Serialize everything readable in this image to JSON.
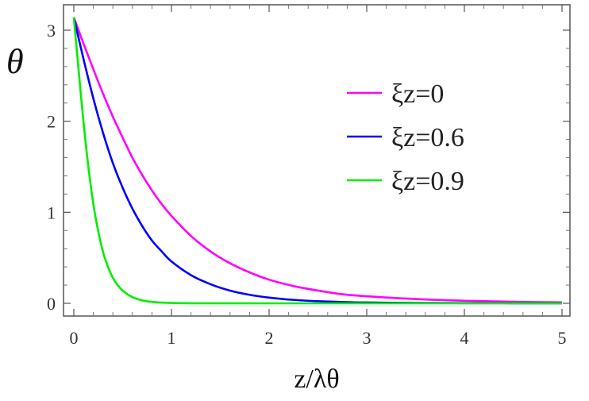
{
  "chart_data": {
    "type": "line",
    "ylabel": "θ",
    "xlabel": "z/λθ",
    "xlim": [
      0,
      5
    ],
    "ylim": [
      -0.15,
      3.2
    ],
    "xticks": [
      0,
      1,
      2,
      3,
      4,
      5
    ],
    "yticks": [
      0,
      1,
      2,
      3
    ],
    "legend_position": "top-right",
    "series": [
      {
        "name": "ξz=0",
        "color": "#ff00ff",
        "x": [
          0,
          0.1,
          0.2,
          0.3,
          0.4,
          0.5,
          0.6,
          0.7,
          0.8,
          0.9,
          1.0,
          1.2,
          1.4,
          1.6,
          1.8,
          2.0,
          2.25,
          2.5,
          2.75,
          3.0,
          3.5,
          4.0,
          4.5,
          5.0
        ],
        "y": [
          3.14,
          2.85,
          2.57,
          2.3,
          2.05,
          1.82,
          1.6,
          1.41,
          1.24,
          1.09,
          0.96,
          0.74,
          0.57,
          0.44,
          0.34,
          0.26,
          0.19,
          0.14,
          0.1,
          0.078,
          0.047,
          0.028,
          0.017,
          0.01
        ]
      },
      {
        "name": "ξz=0.6",
        "color": "#0000ff",
        "x": [
          0,
          0.1,
          0.2,
          0.3,
          0.4,
          0.5,
          0.6,
          0.7,
          0.8,
          0.9,
          1.0,
          1.2,
          1.4,
          1.6,
          1.8,
          2.0,
          2.25,
          2.5,
          2.75,
          3.0,
          3.5,
          4.0,
          4.5,
          5.0
        ],
        "y": [
          3.14,
          2.68,
          2.25,
          1.87,
          1.54,
          1.27,
          1.04,
          0.85,
          0.69,
          0.57,
          0.46,
          0.31,
          0.21,
          0.14,
          0.094,
          0.063,
          0.038,
          0.023,
          0.014,
          0.009,
          0.004,
          0.002,
          0.001,
          0.0005
        ]
      },
      {
        "name": "ξz=0.9",
        "color": "#00ee00",
        "x": [
          0,
          0.05,
          0.1,
          0.15,
          0.2,
          0.25,
          0.3,
          0.35,
          0.4,
          0.45,
          0.5,
          0.6,
          0.7,
          0.8,
          0.9,
          1.0,
          1.2,
          1.5,
          2.0,
          3.0,
          4.0,
          5.0
        ],
        "y": [
          3.14,
          2.55,
          1.98,
          1.49,
          1.09,
          0.79,
          0.56,
          0.4,
          0.28,
          0.2,
          0.14,
          0.068,
          0.033,
          0.016,
          0.008,
          0.004,
          0.001,
          0.0002,
          0,
          0,
          0,
          0
        ]
      }
    ]
  }
}
